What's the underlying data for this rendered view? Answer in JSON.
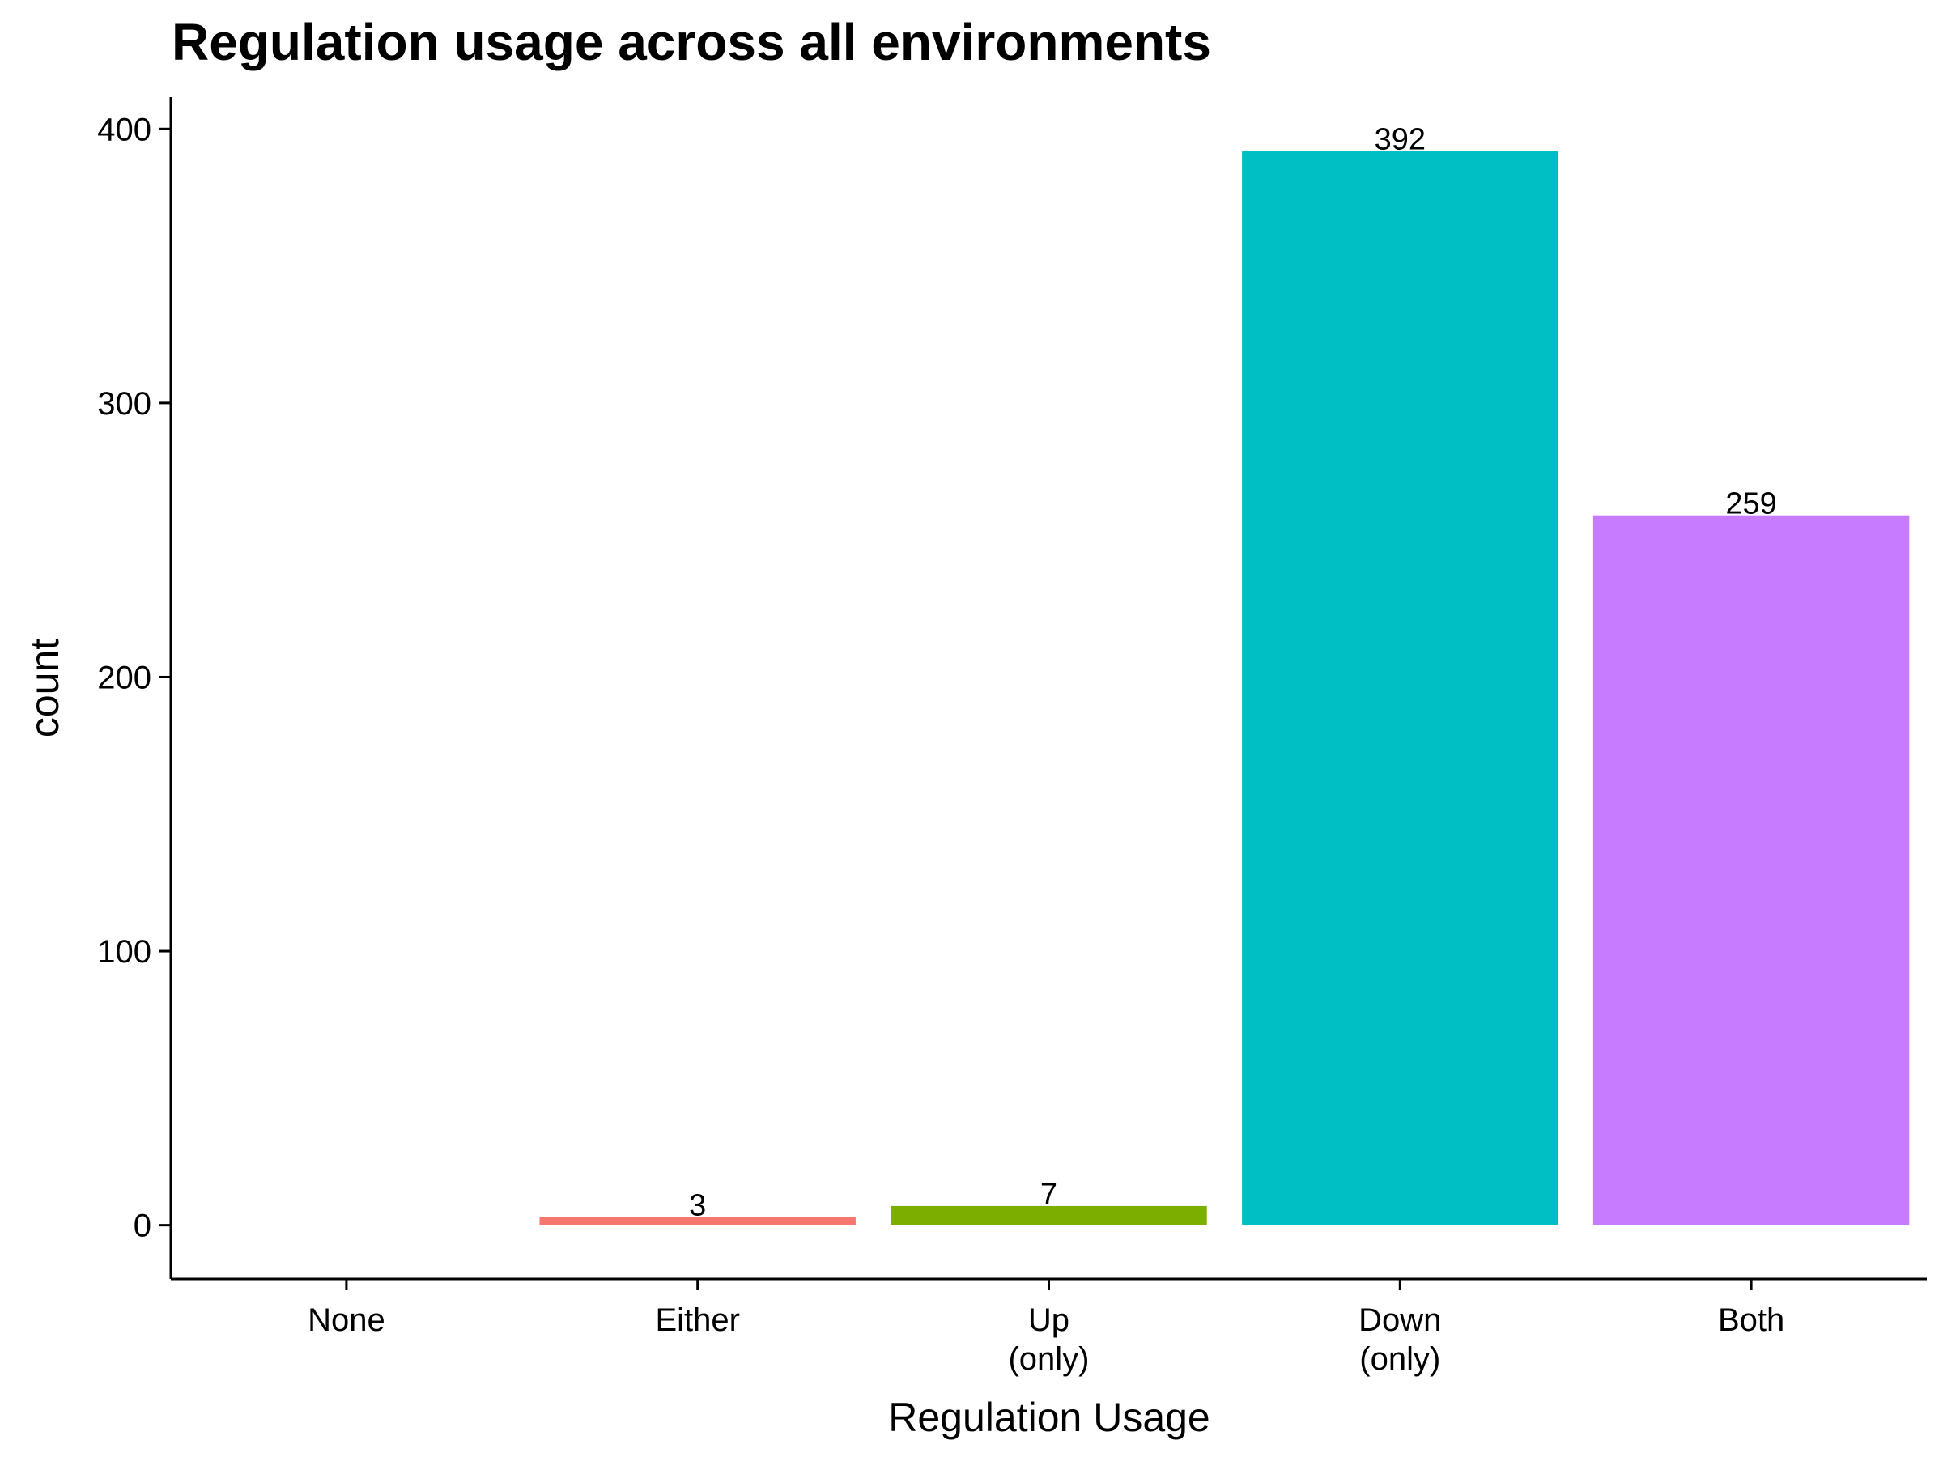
{
  "chart_data": {
    "type": "bar",
    "title": "Regulation usage across all environments",
    "xlabel": "Regulation Usage",
    "ylabel": "count",
    "categories": [
      [
        "None"
      ],
      [
        "Either"
      ],
      [
        "Up",
        "(only)"
      ],
      [
        "Down",
        "(only)"
      ],
      [
        "Both"
      ]
    ],
    "values": [
      0,
      3,
      7,
      392,
      259
    ],
    "data_labels": [
      "",
      "3",
      "7",
      "392",
      "259"
    ],
    "colors": [
      "#F8766D",
      "#F8766D",
      "#7CAE00",
      "#00BFC4",
      "#C77CFF"
    ],
    "ylim": [
      -19.6,
      411.6
    ],
    "yticks": [
      0,
      100,
      200,
      300,
      400
    ],
    "grid": false,
    "legend": "none"
  }
}
